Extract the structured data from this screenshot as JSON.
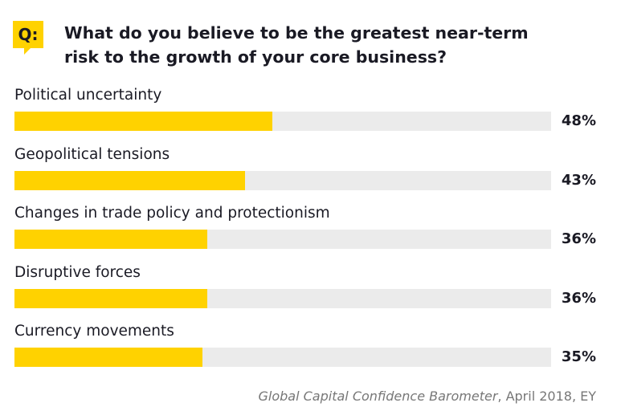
{
  "chart_data": {
    "type": "hbar",
    "badge": "Q:",
    "title": "What do you believe to be the greatest near-term risk to the growth of your core business?",
    "categories": [
      "Political uncertainty",
      "Geopolitical tensions",
      "Changes in trade policy and protectionism",
      "Disruptive forces",
      "Currency movements"
    ],
    "values": [
      48,
      43,
      36,
      36,
      35
    ],
    "value_labels": [
      "48%",
      "43%",
      "36%",
      "36%",
      "35%"
    ],
    "color": "#ffd200",
    "track_color": "#ebebeb",
    "xlim": [
      0,
      100
    ],
    "source_title": "Global Capital Confidence Barometer",
    "source_detail": ", April 2018, EY"
  }
}
